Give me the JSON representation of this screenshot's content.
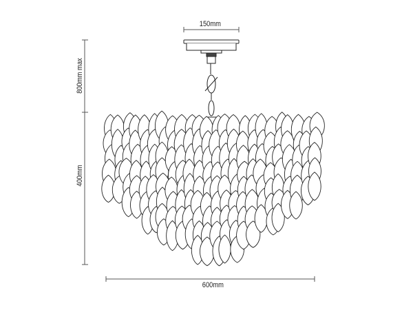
{
  "dimensions": {
    "canopy_width": "150mm",
    "max_drop": "800mm max",
    "body_height": "400mm",
    "body_width": "600mm"
  },
  "colors": {
    "line": "#222222",
    "dimension": "#555555"
  }
}
